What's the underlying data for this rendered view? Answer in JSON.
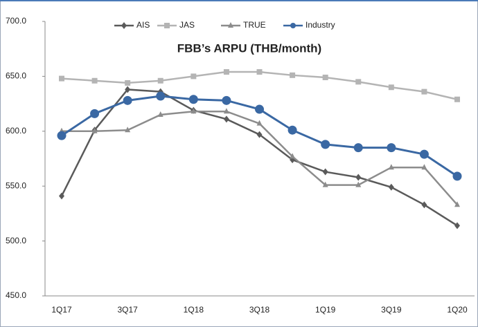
{
  "chart_data": {
    "type": "line",
    "title": "FBB’s ARPU (THB/month)",
    "categories": [
      "1Q17",
      null,
      "3Q17",
      null,
      "1Q18",
      null,
      "3Q18",
      null,
      "1Q19",
      null,
      "3Q19",
      null,
      "1Q20"
    ],
    "series": [
      {
        "name": "AIS",
        "color": "#5a5a5a",
        "marker": "diamond",
        "values": [
          541,
          601,
          638,
          636,
          619,
          611,
          597,
          574,
          563,
          558,
          549,
          533,
          514
        ]
      },
      {
        "name": "JAS",
        "color": "#b4b4b4",
        "marker": "square",
        "values": [
          648,
          646,
          644,
          646,
          650,
          654,
          654,
          651,
          649,
          645,
          640,
          636,
          629
        ]
      },
      {
        "name": "TRUE",
        "color": "#8c8c8c",
        "marker": "triangle",
        "values": [
          600,
          600,
          601,
          615,
          618,
          618,
          607,
          577,
          551,
          551,
          567,
          567,
          533
        ]
      },
      {
        "name": "Industry",
        "color": "#3a68a3",
        "marker": "circle",
        "values": [
          596,
          616,
          628,
          632,
          629,
          628,
          620,
          601,
          588,
          585,
          585,
          579,
          559
        ]
      }
    ],
    "ylim": [
      450,
      700
    ],
    "yticks": [
      {
        "value": 450,
        "label": "450.0"
      },
      {
        "value": 500,
        "label": "500.0"
      },
      {
        "value": 550,
        "label": "550.0"
      },
      {
        "value": 600,
        "label": "600.0"
      },
      {
        "value": 650,
        "label": "650.0"
      },
      {
        "value": 700,
        "label": "700.0"
      }
    ],
    "grid": false,
    "legend": "top"
  }
}
